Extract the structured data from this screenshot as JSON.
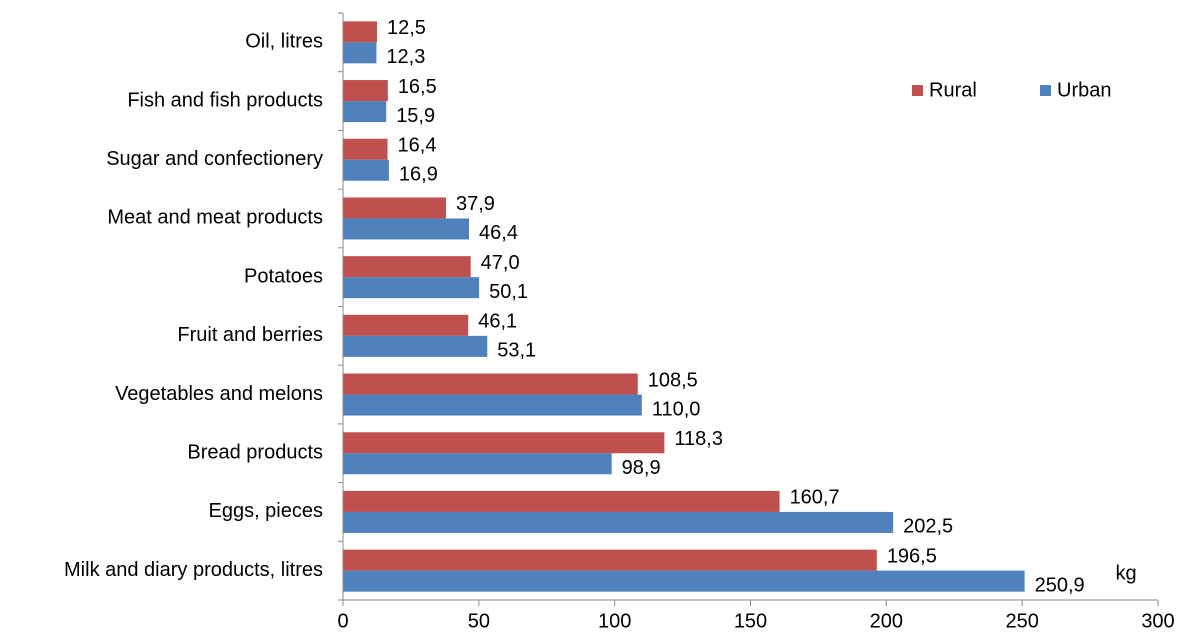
{
  "chart_data": {
    "type": "barh",
    "categories": [
      "Oil, litres",
      "Fish and fish products",
      "Sugar and confectionery",
      "Meat and meat products",
      "Potatoes",
      "Fruit and berries",
      "Vegetables and melons",
      "Bread products",
      "Eggs, pieces",
      "Milk and diary products, litres"
    ],
    "series": [
      {
        "name": "Rural",
        "color": "#c0504d",
        "values": [
          12.5,
          16.5,
          16.4,
          37.9,
          47.0,
          46.1,
          108.5,
          118.3,
          160.7,
          196.5
        ],
        "value_labels": [
          "12,5",
          "16,5",
          "16,4",
          "37,9",
          "47,0",
          "46,1",
          "108,5",
          "118,3",
          "160,7",
          "196,5"
        ]
      },
      {
        "name": "Urban",
        "color": "#4f81bd",
        "values": [
          12.3,
          15.9,
          16.9,
          46.4,
          50.1,
          53.1,
          110.0,
          98.9,
          202.5,
          250.9
        ],
        "value_labels": [
          "12,3",
          "15,9",
          "16,9",
          "46,4",
          "50,1",
          "53,1",
          "110,0",
          "98,9",
          "202,5",
          "250,9"
        ]
      }
    ],
    "xlim": [
      0,
      300
    ],
    "xticks": [
      0,
      50,
      100,
      150,
      200,
      250,
      300
    ],
    "annotation": "kg",
    "legend": "upper right"
  }
}
